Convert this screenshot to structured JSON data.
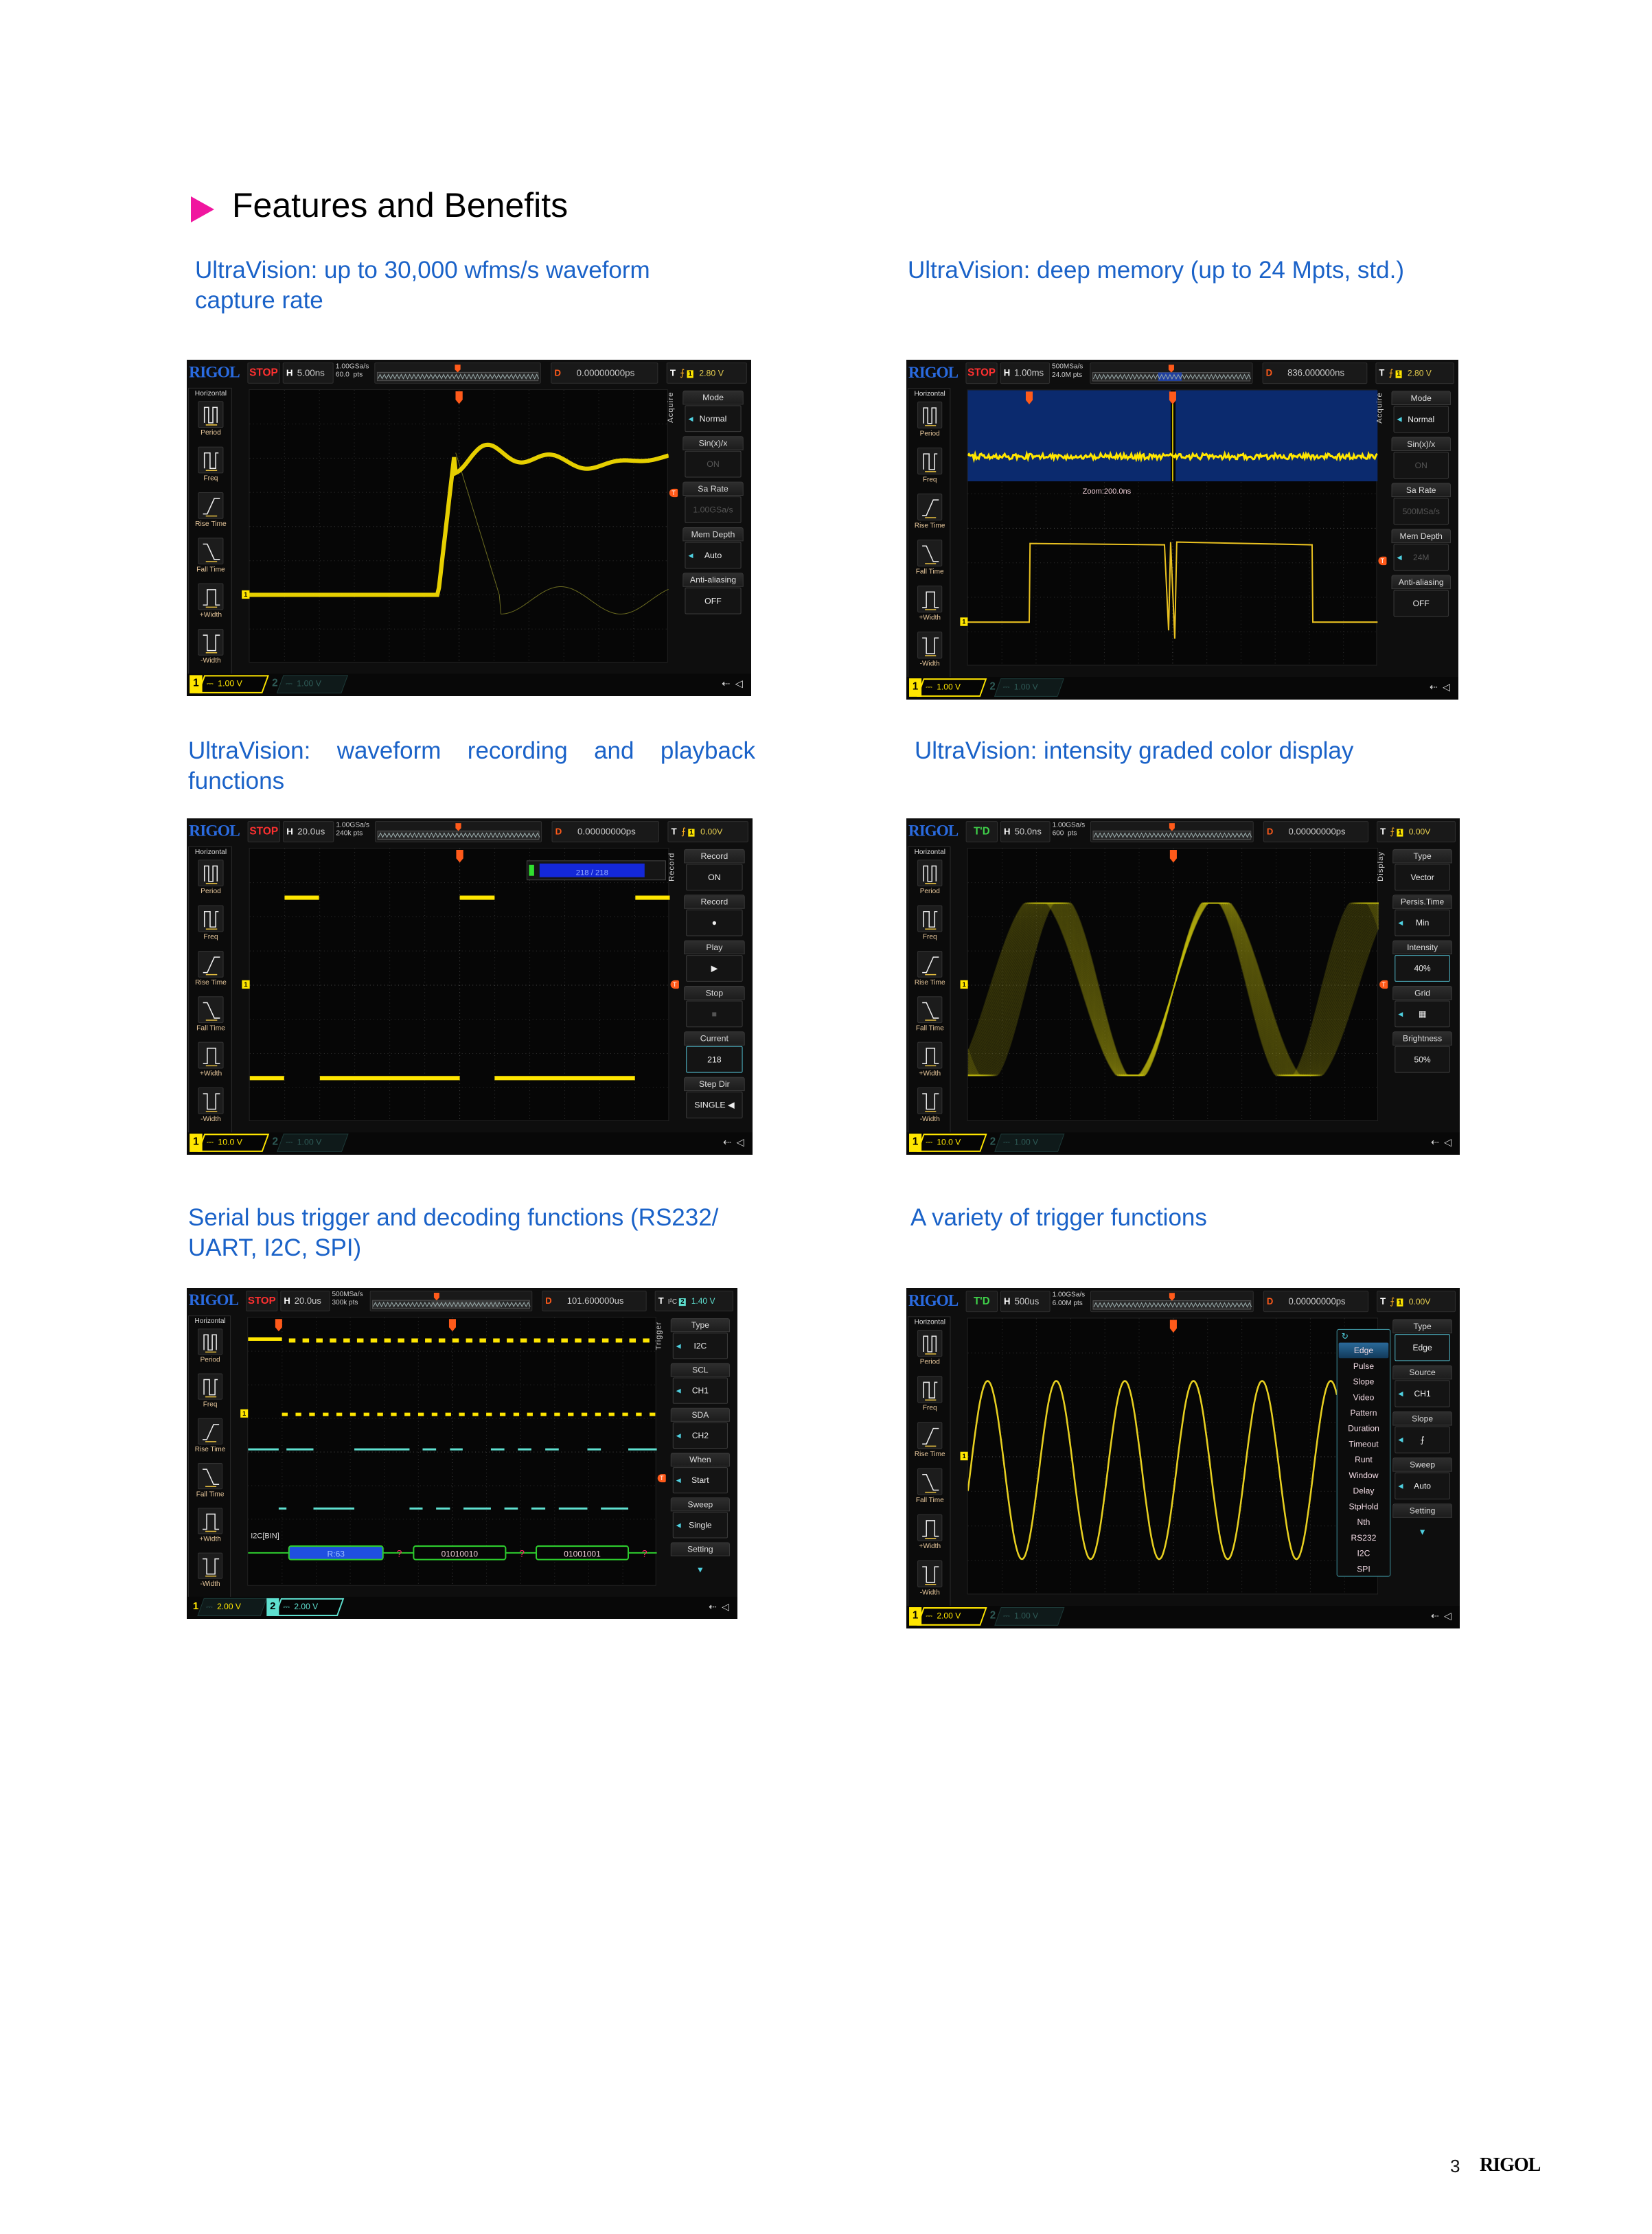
{
  "page": {
    "heading": "Features and Benefits",
    "page_number": "3",
    "footer_logo": "RIGOL"
  },
  "colors": {
    "heading_marker": "#f0169f",
    "caption": "#1a62c8",
    "logo": "#2a6be0",
    "stop": "#ff3030",
    "triggered": "#3fd24a",
    "ch1": "#ffe600",
    "ch2": "#5fe0d0",
    "trigger_marker": "#ff5a1a",
    "decode_box": "#1f4fe0",
    "decode_line": "#2ecc2e"
  },
  "measure_panel": {
    "title": "Horizontal",
    "items": [
      "Period",
      "Freq",
      "Rise Time",
      "Fall Time",
      "+Width",
      "-Width"
    ]
  },
  "sections": [
    {
      "caption": "UltraVision: up to 30,000 wfms/s waveform capture rate",
      "scope": {
        "logo": "RIGOL",
        "run_state": "STOP",
        "timebase_label": "H",
        "timebase": "5.00ns",
        "sample_rate": "1.00GSa/s",
        "mem_points": "60.0  pts",
        "delay_label": "D",
        "delay": "0.00000000ps",
        "trigger_label": "T",
        "trigger_source": "1",
        "trigger_level": "2.80 V",
        "menu_title": "Acquire",
        "menu": [
          {
            "label": "Mode",
            "value": "Normal",
            "arrow": true
          },
          {
            "label": "Sin(x)/x",
            "value": "ON",
            "dim": true
          },
          {
            "label": "Sa Rate",
            "value": "1.00GSa/s",
            "dim": true
          },
          {
            "label": "Mem Depth",
            "value": "Auto",
            "arrow": true
          },
          {
            "label": "Anti-aliasing",
            "value": "OFF"
          }
        ],
        "ch1": {
          "num": "1",
          "scale": "1.00 V",
          "active": true
        },
        "ch2": {
          "num": "2",
          "scale": "1.00 V",
          "active": false
        }
      }
    },
    {
      "caption": "UltraVision: deep memory (up to 24 Mpts, std.)",
      "scope": {
        "logo": "RIGOL",
        "run_state": "STOP",
        "timebase_label": "H",
        "timebase": "1.00ms",
        "sample_rate": "500MSa/s",
        "mem_points": "24.0M pts",
        "delay_label": "D",
        "delay": "836.000000ns",
        "trigger_label": "T",
        "trigger_source": "1",
        "trigger_level": "2.80 V",
        "menu_title": "Acquire",
        "zoom_label": "Zoom:200.0ns",
        "menu": [
          {
            "label": "Mode",
            "value": "Normal",
            "arrow": true
          },
          {
            "label": "Sin(x)/x",
            "value": "ON",
            "dim": true
          },
          {
            "label": "Sa Rate",
            "value": "500MSa/s",
            "dim": true
          },
          {
            "label": "Mem Depth",
            "value": "24M",
            "arrow": true,
            "dim": true
          },
          {
            "label": "Anti-aliasing",
            "value": "OFF"
          }
        ],
        "ch1": {
          "num": "1",
          "scale": "1.00 V",
          "active": true
        },
        "ch2": {
          "num": "2",
          "scale": "1.00 V",
          "active": false
        }
      }
    },
    {
      "caption": "UltraVision: waveform recording and playback functions",
      "scope": {
        "logo": "RIGOL",
        "run_state": "STOP",
        "timebase_label": "H",
        "timebase": "20.0us",
        "sample_rate": "1.00GSa/s",
        "mem_points": "240k pts",
        "delay_label": "D",
        "delay": "0.00000000ps",
        "trigger_label": "T",
        "trigger_source": "1",
        "trigger_level": "0.00V",
        "menu_title": "Record",
        "record_progress": {
          "text": "218 / 218",
          "fraction": 1.0
        },
        "menu": [
          {
            "label": "Record",
            "value": "ON"
          },
          {
            "label": "Record",
            "value": "●"
          },
          {
            "label": "Play",
            "value": "▶"
          },
          {
            "label": "Stop",
            "value": "■",
            "dim": true
          },
          {
            "label": "Current",
            "value": "218",
            "hi": true
          },
          {
            "label": "Step Dir",
            "value": "SINGLE ◀"
          }
        ],
        "ch1": {
          "num": "1",
          "scale": "10.0 V",
          "active": true
        },
        "ch2": {
          "num": "2",
          "scale": "1.00 V",
          "active": false
        }
      }
    },
    {
      "caption": "UltraVision: intensity graded color display",
      "scope": {
        "logo": "RIGOL",
        "run_state": "T'D",
        "timebase_label": "H",
        "timebase": "50.0ns",
        "sample_rate": "1.00GSa/s",
        "mem_points": "600  pts",
        "delay_label": "D",
        "delay": "0.00000000ps",
        "trigger_label": "T",
        "trigger_source": "1",
        "trigger_level": "0.00V",
        "menu_title": "Display",
        "menu": [
          {
            "label": "Type",
            "value": "Vector"
          },
          {
            "label": "Persis.Time",
            "value": "Min",
            "arrow": true
          },
          {
            "label": "Intensity",
            "value": "40%",
            "hi": true
          },
          {
            "label": "Grid",
            "value": "▦",
            "arrow": true
          },
          {
            "label": "Brightness",
            "value": "50%"
          }
        ],
        "ch1": {
          "num": "1",
          "scale": "10.0 V",
          "active": true
        },
        "ch2": {
          "num": "2",
          "scale": "1.00 V",
          "active": false
        }
      }
    },
    {
      "caption": "Serial bus trigger and decoding functions (RS232/ UART, I2C, SPI)",
      "scope": {
        "logo": "RIGOL",
        "run_state": "STOP",
        "timebase_label": "H",
        "timebase": "20.0us",
        "sample_rate": "500MSa/s",
        "mem_points": "300k pts",
        "delay_label": "D",
        "delay": "101.600000us",
        "trigger_label": "T",
        "trigger_source": "2",
        "trigger_type": "I²C",
        "trigger_level": "1.40 V",
        "menu_title": "Trigger",
        "decode": {
          "label": "I2C[BIN]",
          "bus": "B1",
          "frames": [
            "R:63",
            "01010010",
            "01001001"
          ],
          "error_mark": "?"
        },
        "menu": [
          {
            "label": "Type",
            "value": "I2C",
            "arrow": true
          },
          {
            "label": "SCL",
            "value": "CH1",
            "arrow": true
          },
          {
            "label": "SDA",
            "value": "CH2",
            "arrow": true
          },
          {
            "label": "When",
            "value": "Start",
            "arrow": true
          },
          {
            "label": "Sweep",
            "value": "Single",
            "arrow": true
          },
          {
            "label": "Setting",
            "value": "▼"
          }
        ],
        "ch1": {
          "num": "1",
          "scale": "2.00 V",
          "active": false
        },
        "ch2": {
          "num": "2",
          "scale": "2.00 V",
          "active": true
        }
      }
    },
    {
      "caption": "A variety of trigger functions",
      "scope": {
        "logo": "RIGOL",
        "run_state": "T'D",
        "timebase_label": "H",
        "timebase": "500us",
        "sample_rate": "1.00GSa/s",
        "mem_points": "6.00M pts",
        "delay_label": "D",
        "delay": "0.00000000ps",
        "trigger_label": "T",
        "trigger_source": "1",
        "trigger_level": "0.00V",
        "menu_title": "",
        "trigger_types": [
          "Edge",
          "Pulse",
          "Slope",
          "Video",
          "Pattern",
          "Duration",
          "Timeout",
          "Runt",
          "Window",
          "Delay",
          "StpHold",
          "Nth",
          "RS232",
          "I2C",
          "SPI"
        ],
        "trigger_selected": "Edge",
        "menu": [
          {
            "label": "Type",
            "value": "Edge",
            "hi": true
          },
          {
            "label": "Source",
            "value": "CH1",
            "arrow": true
          },
          {
            "label": "Slope",
            "value": "⨍",
            "arrow": true
          },
          {
            "label": "Sweep",
            "value": "Auto",
            "arrow": true
          },
          {
            "label": "Setting",
            "value": "▼"
          }
        ],
        "ch1": {
          "num": "1",
          "scale": "2.00 V",
          "active": true
        },
        "ch2": {
          "num": "2",
          "scale": "1.00 V",
          "active": false
        }
      }
    }
  ]
}
